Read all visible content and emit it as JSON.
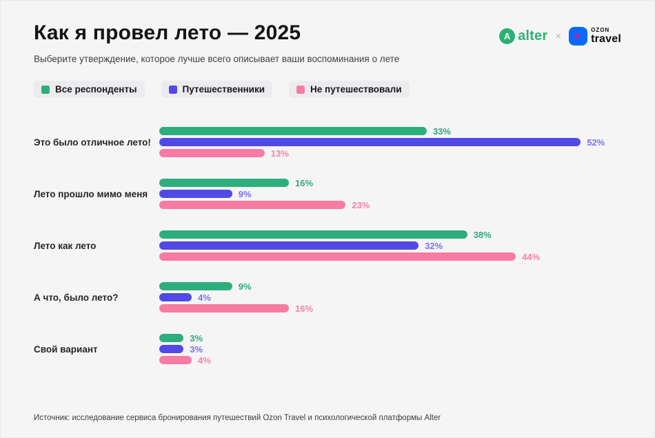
{
  "page": {
    "title": "Как я провел лето — 2025",
    "subtitle": "Выберите утверждение, которое лучше всего описывает ваши воспоминания о лете",
    "source": "Источник: исследование сервиса бронирования путешествий Ozon Travel и психологической платформы Alter",
    "background": "#f5f5f6"
  },
  "logos": {
    "alter_mark": "A",
    "alter_word": "alter",
    "separator": "×",
    "ozon_top": "OZON",
    "ozon_bottom": "travel",
    "alter_green": "#2bb273",
    "ozon_blue": "#0a69ff",
    "ozon_plane_pink": "#f0117e",
    "plane_icon": "✈"
  },
  "legend": [
    {
      "label": "Все респонденты",
      "color": "#2fae7d"
    },
    {
      "label": "Путешественники",
      "color": "#5149e6"
    },
    {
      "label": "Не путешествовали",
      "color": "#f87ba3"
    }
  ],
  "chart_data": {
    "type": "bar",
    "orientation": "horizontal",
    "title": "Как я провел лето — 2025",
    "categories": [
      "Это было отличное лето!",
      "Лето прошло мимо меня",
      "Лето как лето",
      "А что, было лето?",
      "Свой вариант"
    ],
    "series": [
      {
        "key": "all-respondents",
        "name": "Все респонденты",
        "color": "#2fae7d",
        "value_color": "#2aa97a",
        "values": [
          33,
          16,
          38,
          9,
          3
        ]
      },
      {
        "key": "travelers",
        "name": "Путешественники",
        "color": "#5149e6",
        "value_color": "#7b70f1",
        "values": [
          52,
          9,
          32,
          4,
          3
        ]
      },
      {
        "key": "non-travelers",
        "name": "Не путешествовали",
        "color": "#f87ba3",
        "value_color": "#f980a8",
        "values": [
          13,
          23,
          44,
          16,
          4
        ]
      }
    ],
    "value_suffix": "%",
    "xlim": [
      0,
      57
    ],
    "grid": false,
    "legend_position": "top"
  }
}
